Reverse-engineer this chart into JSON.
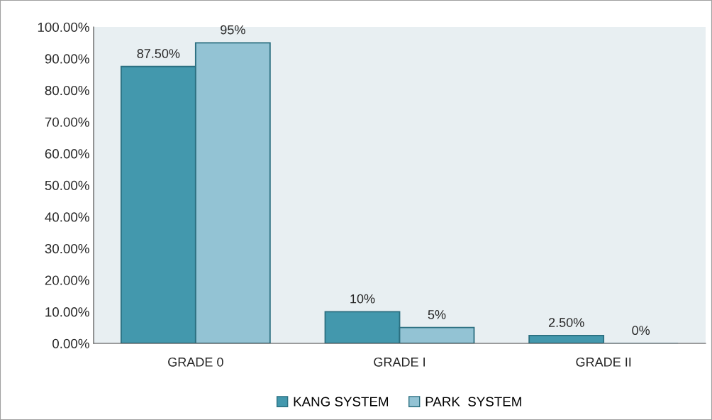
{
  "chart_data": {
    "type": "bar",
    "categories": [
      "GRADE 0",
      "GRADE I",
      "GRADE II"
    ],
    "series": [
      {
        "name": "KANG SYSTEM",
        "color": "#4398ad",
        "values": [
          87.5,
          10,
          2.5
        ],
        "value_labels": [
          "87.50%",
          "10%",
          "2.50%"
        ]
      },
      {
        "name": "PARK  SYSTEM",
        "color": "#93c3d4",
        "values": [
          95,
          5,
          0
        ],
        "value_labels": [
          "95%",
          "5%",
          "0%"
        ]
      }
    ],
    "ylim": [
      0,
      100
    ],
    "yticks": [
      {
        "value": 0,
        "label": "0.00%"
      },
      {
        "value": 10,
        "label": "10.00%"
      },
      {
        "value": 20,
        "label": "20.00%"
      },
      {
        "value": 30,
        "label": "30.00%"
      },
      {
        "value": 40,
        "label": "40.00%"
      },
      {
        "value": 50,
        "label": "50.00%"
      },
      {
        "value": 60,
        "label": "60.00%"
      },
      {
        "value": 70,
        "label": "70.00%"
      },
      {
        "value": 80,
        "label": "80.00%"
      },
      {
        "value": 90,
        "label": "90.00%"
      },
      {
        "value": 100,
        "label": "100.00%"
      }
    ],
    "grid": false,
    "legend": "bottom"
  }
}
